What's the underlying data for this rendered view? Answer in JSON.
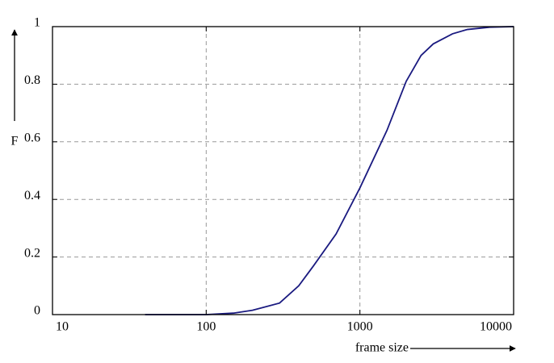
{
  "chart_data": {
    "type": "line",
    "xscale": "log",
    "grid": true,
    "xlabel": "frame size",
    "ylabel": "F",
    "x": [
      40,
      100,
      150,
      200,
      300,
      400,
      500,
      700,
      1000,
      1500,
      2000,
      2500,
      3000,
      4000,
      5000,
      7000,
      10000
    ],
    "series": [
      {
        "color": "#1a1a80",
        "values": [
          0,
          0,
          0.005,
          0.015,
          0.04,
          0.1,
          0.17,
          0.28,
          0.44,
          0.64,
          0.81,
          0.9,
          0.94,
          0.975,
          0.99,
          0.998,
          1
        ]
      }
    ],
    "xlim": [
      10,
      10000
    ],
    "xticks": [
      10,
      100,
      1000,
      10000
    ],
    "ylim": [
      0,
      1
    ],
    "yticks": [
      0,
      0.2,
      0.4,
      0.6,
      0.8,
      1
    ]
  }
}
